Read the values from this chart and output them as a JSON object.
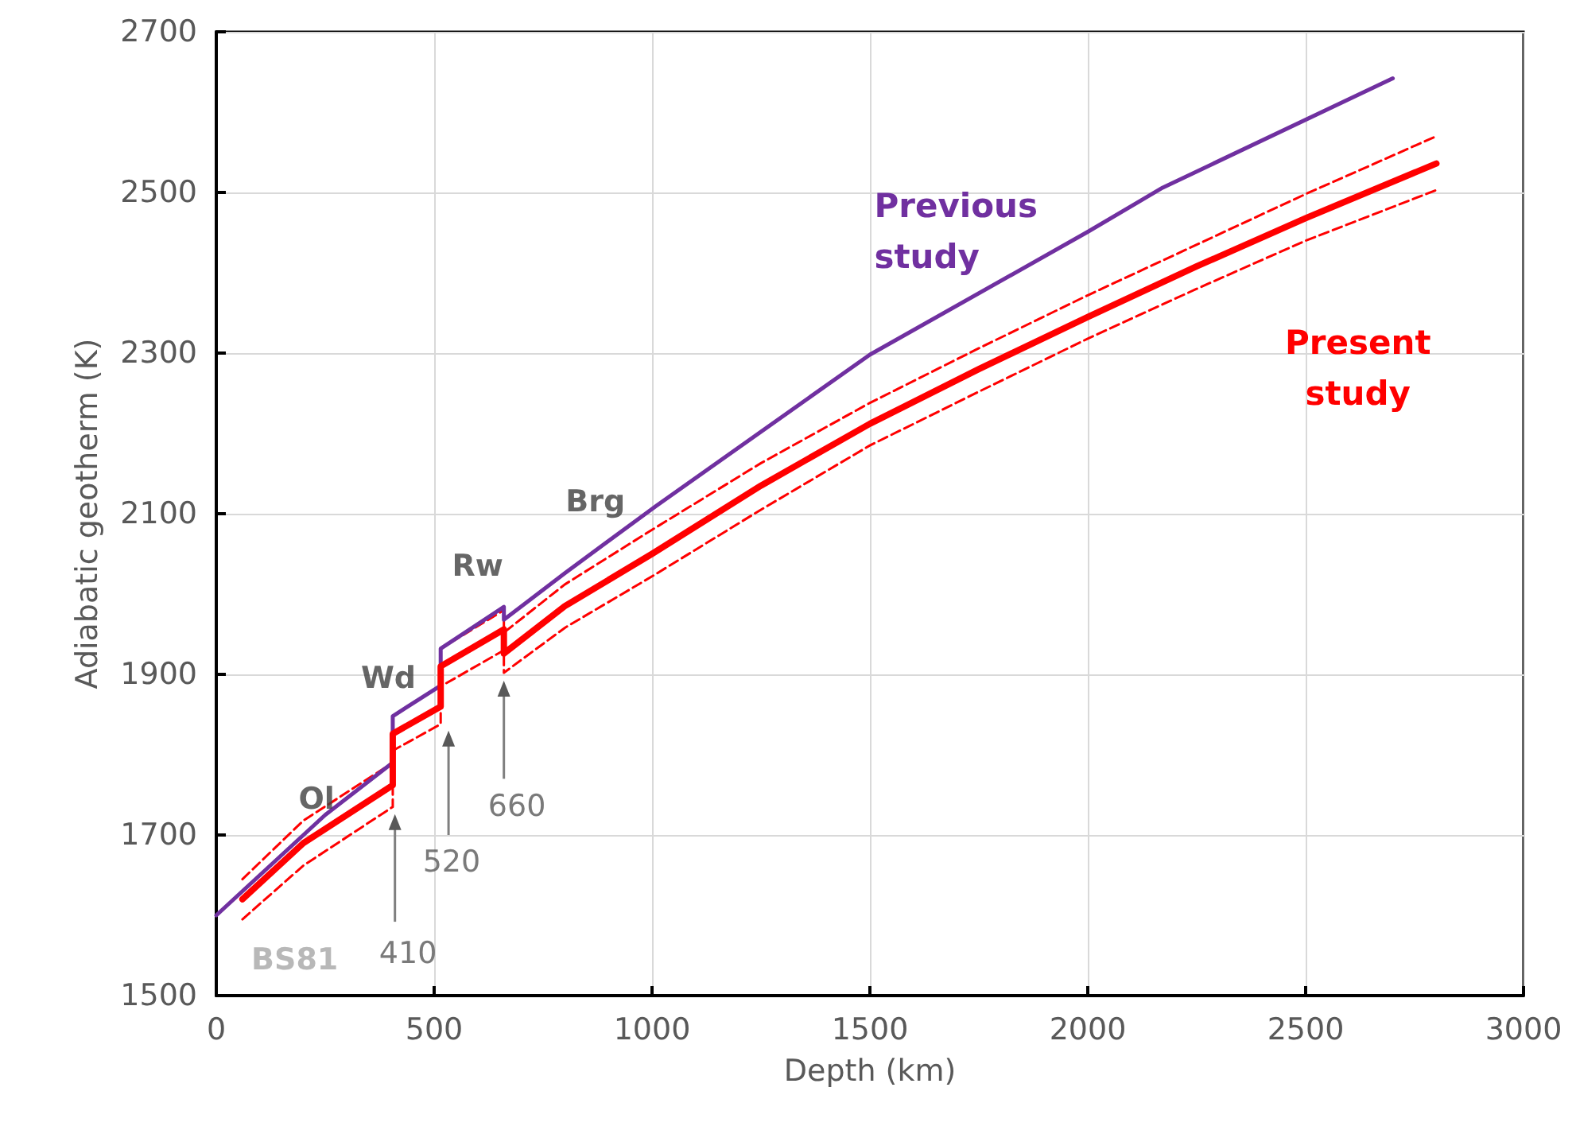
{
  "chart_data": {
    "type": "line",
    "xlabel": "Depth (km)",
    "ylabel": "Adiabatic geotherm (K)",
    "xlim": [
      0,
      3000
    ],
    "xticks": [
      0,
      500,
      1000,
      1500,
      2000,
      2500,
      3000
    ],
    "ylim": [
      1500,
      2700
    ],
    "yticks": [
      1500,
      1700,
      1900,
      2100,
      2300,
      2500,
      2700
    ],
    "grid": true,
    "legend": false,
    "marker": "none",
    "series": [
      {
        "name": "Previous study",
        "color": "#7030a0",
        "x": [
          0,
          250,
          405,
          405,
          515,
          515,
          660,
          660,
          800,
          1010,
          1500,
          2000,
          2172,
          2700
        ],
        "values": [
          1600,
          1725,
          1790,
          1848,
          1886,
          1932,
          1984,
          1968,
          2026,
          2110,
          2298,
          2451,
          2506,
          2642
        ]
      },
      {
        "color": "#ff0000",
        "line_style": "dashed",
        "x": [
          60,
          200,
          405,
          405,
          515,
          515,
          660,
          660,
          800,
          1000,
          1250,
          1500,
          1750,
          2000,
          2250,
          2500,
          2800
        ],
        "values": [
          1645,
          1718,
          1790,
          1848,
          1886,
          1932,
          1980,
          1952,
          2012,
          2080,
          2163,
          2238,
          2306,
          2372,
          2435,
          2498,
          2570
        ]
      },
      {
        "name": "Present study",
        "color": "#ff0000",
        "x": [
          60,
          200,
          405,
          405,
          515,
          515,
          660,
          660,
          800,
          1000,
          1250,
          1500,
          1750,
          2000,
          2250,
          2500,
          2800
        ],
        "values": [
          1620,
          1690,
          1762,
          1826,
          1860,
          1910,
          1956,
          1926,
          1985,
          2050,
          2135,
          2212,
          2280,
          2345,
          2408,
          2468,
          2536
        ]
      },
      {
        "color": "#ff0000",
        "line_style": "dashed",
        "x": [
          60,
          200,
          405,
          405,
          515,
          515,
          660,
          660,
          800,
          1000,
          1250,
          1500,
          1750,
          2000,
          2250,
          2500,
          2800
        ],
        "values": [
          1595,
          1662,
          1735,
          1805,
          1838,
          1885,
          1930,
          1902,
          1958,
          2022,
          2105,
          2185,
          2252,
          2318,
          2380,
          2440,
          2503
        ]
      }
    ],
    "annotations": [
      "Ol",
      "Wd",
      "Rw",
      "Brg",
      "BS81",
      "410",
      "520",
      "660"
    ]
  }
}
